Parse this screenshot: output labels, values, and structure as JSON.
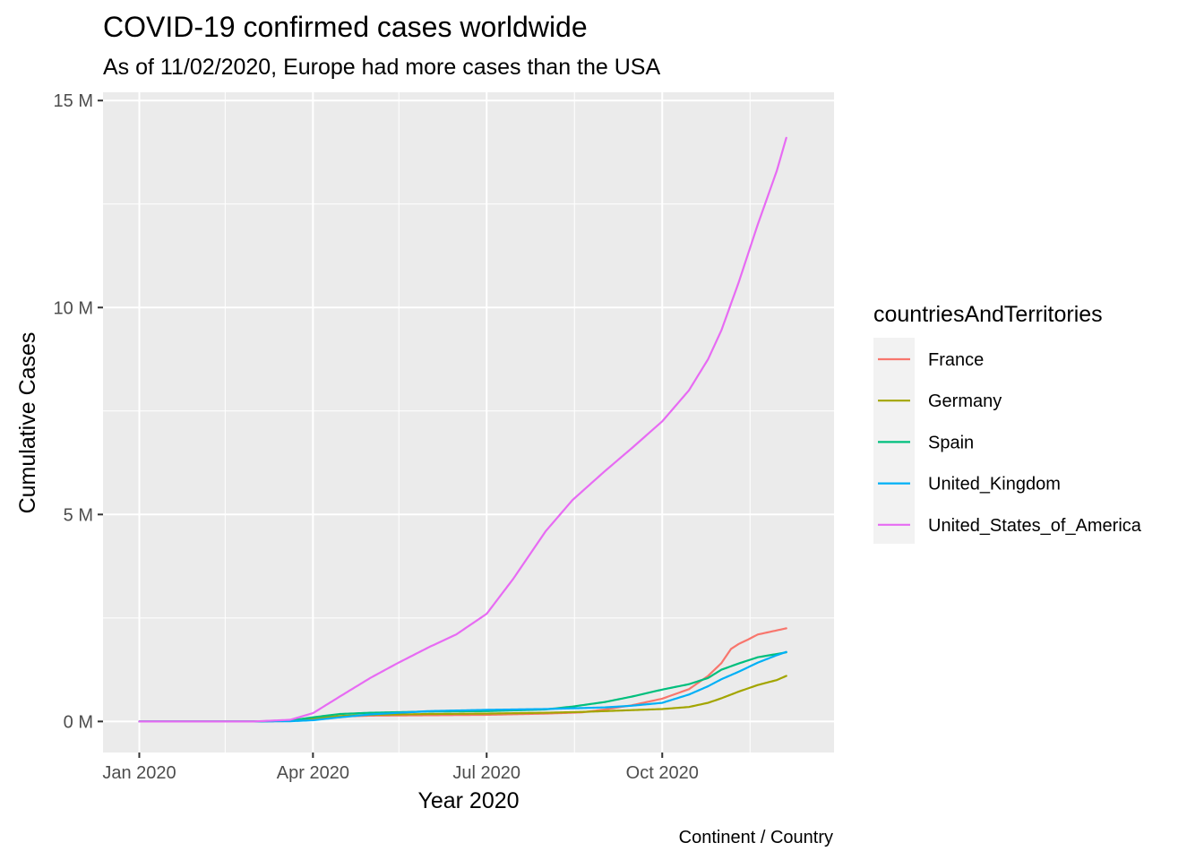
{
  "chart_data": {
    "type": "line",
    "title": "COVID-19 confirmed cases worldwide",
    "subtitle": "As of 11/02/2020, Europe had more cases than the USA",
    "xlabel": "Year 2020",
    "ylabel": "Cumulative Cases",
    "caption": "Continent / Country",
    "legend_title": "countriesAndTerritories",
    "legend_position": "right",
    "grid": true,
    "x_type": "date",
    "xlim": [
      "2019-12-13",
      "2020-12-30"
    ],
    "ylim": [
      -0.75,
      15.2
    ],
    "x_ticks": [
      {
        "date": "2020-01-01",
        "label": "Jan 2020"
      },
      {
        "date": "2020-04-01",
        "label": "Apr 2020"
      },
      {
        "date": "2020-07-01",
        "label": "Jul 2020"
      },
      {
        "date": "2020-10-01",
        "label": "Oct 2020"
      }
    ],
    "x_minor_ticks": [
      "2020-02-15",
      "2020-05-16",
      "2020-08-16",
      "2020-11-16"
    ],
    "y_ticks": [
      {
        "value": 0,
        "label": "0 M"
      },
      {
        "value": 5,
        "label": "5 M"
      },
      {
        "value": 10,
        "label": "10 M"
      },
      {
        "value": 15,
        "label": "15 M"
      }
    ],
    "y_minor_ticks": [
      2.5,
      7.5,
      12.5
    ],
    "series": [
      {
        "name": "France",
        "color": "#F8766D",
        "points": [
          [
            "2020-01-01",
            0
          ],
          [
            "2020-03-01",
            0
          ],
          [
            "2020-03-20",
            0.01
          ],
          [
            "2020-04-01",
            0.06
          ],
          [
            "2020-04-15",
            0.12
          ],
          [
            "2020-05-01",
            0.14
          ],
          [
            "2020-06-01",
            0.15
          ],
          [
            "2020-07-01",
            0.16
          ],
          [
            "2020-08-01",
            0.19
          ],
          [
            "2020-08-20",
            0.22
          ],
          [
            "2020-09-01",
            0.29
          ],
          [
            "2020-09-15",
            0.39
          ],
          [
            "2020-10-01",
            0.55
          ],
          [
            "2020-10-15",
            0.78
          ],
          [
            "2020-10-25",
            1.1
          ],
          [
            "2020-11-01",
            1.41
          ],
          [
            "2020-11-06",
            1.75
          ],
          [
            "2020-11-10",
            1.87
          ],
          [
            "2020-11-15",
            1.98
          ],
          [
            "2020-11-20",
            2.1
          ],
          [
            "2020-11-25",
            2.15
          ],
          [
            "2020-11-30",
            2.2
          ],
          [
            "2020-12-05",
            2.25
          ]
        ]
      },
      {
        "name": "Germany",
        "color": "#A3A500",
        "points": [
          [
            "2020-01-01",
            0
          ],
          [
            "2020-03-01",
            0
          ],
          [
            "2020-03-20",
            0.02
          ],
          [
            "2020-04-01",
            0.08
          ],
          [
            "2020-04-15",
            0.13
          ],
          [
            "2020-05-01",
            0.16
          ],
          [
            "2020-06-01",
            0.18
          ],
          [
            "2020-07-01",
            0.19
          ],
          [
            "2020-08-01",
            0.21
          ],
          [
            "2020-08-20",
            0.23
          ],
          [
            "2020-09-01",
            0.25
          ],
          [
            "2020-10-01",
            0.3
          ],
          [
            "2020-10-15",
            0.35
          ],
          [
            "2020-10-25",
            0.45
          ],
          [
            "2020-11-01",
            0.56
          ],
          [
            "2020-11-10",
            0.72
          ],
          [
            "2020-11-20",
            0.88
          ],
          [
            "2020-11-30",
            1.0
          ],
          [
            "2020-12-05",
            1.1
          ]
        ]
      },
      {
        "name": "Spain",
        "color": "#00BF7D",
        "points": [
          [
            "2020-01-01",
            0
          ],
          [
            "2020-03-01",
            0
          ],
          [
            "2020-03-20",
            0.02
          ],
          [
            "2020-04-01",
            0.1
          ],
          [
            "2020-04-15",
            0.18
          ],
          [
            "2020-05-01",
            0.21
          ],
          [
            "2020-06-01",
            0.24
          ],
          [
            "2020-07-01",
            0.25
          ],
          [
            "2020-08-01",
            0.29
          ],
          [
            "2020-08-15",
            0.36
          ],
          [
            "2020-09-01",
            0.47
          ],
          [
            "2020-09-15",
            0.6
          ],
          [
            "2020-10-01",
            0.77
          ],
          [
            "2020-10-15",
            0.9
          ],
          [
            "2020-10-25",
            1.05
          ],
          [
            "2020-11-01",
            1.25
          ],
          [
            "2020-11-10",
            1.4
          ],
          [
            "2020-11-20",
            1.55
          ],
          [
            "2020-11-30",
            1.63
          ],
          [
            "2020-12-05",
            1.67
          ]
        ]
      },
      {
        "name": "United_Kingdom",
        "color": "#00B0F6",
        "points": [
          [
            "2020-01-01",
            0
          ],
          [
            "2020-03-01",
            0
          ],
          [
            "2020-03-20",
            0.005
          ],
          [
            "2020-04-01",
            0.03
          ],
          [
            "2020-04-15",
            0.1
          ],
          [
            "2020-05-01",
            0.17
          ],
          [
            "2020-06-01",
            0.25
          ],
          [
            "2020-07-01",
            0.28
          ],
          [
            "2020-08-01",
            0.3
          ],
          [
            "2020-09-01",
            0.34
          ],
          [
            "2020-09-15",
            0.38
          ],
          [
            "2020-10-01",
            0.45
          ],
          [
            "2020-10-15",
            0.65
          ],
          [
            "2020-10-25",
            0.85
          ],
          [
            "2020-11-01",
            1.02
          ],
          [
            "2020-11-10",
            1.2
          ],
          [
            "2020-11-20",
            1.42
          ],
          [
            "2020-11-30",
            1.6
          ],
          [
            "2020-12-05",
            1.68
          ]
        ]
      },
      {
        "name": "United_States_of_America",
        "color": "#E76BF3",
        "points": [
          [
            "2020-01-01",
            0
          ],
          [
            "2020-03-01",
            0
          ],
          [
            "2020-03-20",
            0.04
          ],
          [
            "2020-04-01",
            0.2
          ],
          [
            "2020-04-15",
            0.6
          ],
          [
            "2020-05-01",
            1.05
          ],
          [
            "2020-05-15",
            1.4
          ],
          [
            "2020-06-01",
            1.8
          ],
          [
            "2020-06-15",
            2.1
          ],
          [
            "2020-07-01",
            2.6
          ],
          [
            "2020-07-15",
            3.45
          ],
          [
            "2020-08-01",
            4.6
          ],
          [
            "2020-08-15",
            5.35
          ],
          [
            "2020-09-01",
            6.05
          ],
          [
            "2020-09-15",
            6.6
          ],
          [
            "2020-10-01",
            7.25
          ],
          [
            "2020-10-15",
            8.0
          ],
          [
            "2020-10-25",
            8.75
          ],
          [
            "2020-11-01",
            9.45
          ],
          [
            "2020-11-10",
            10.6
          ],
          [
            "2020-11-20",
            12.0
          ],
          [
            "2020-11-30",
            13.3
          ],
          [
            "2020-12-05",
            14.1
          ]
        ]
      }
    ]
  }
}
